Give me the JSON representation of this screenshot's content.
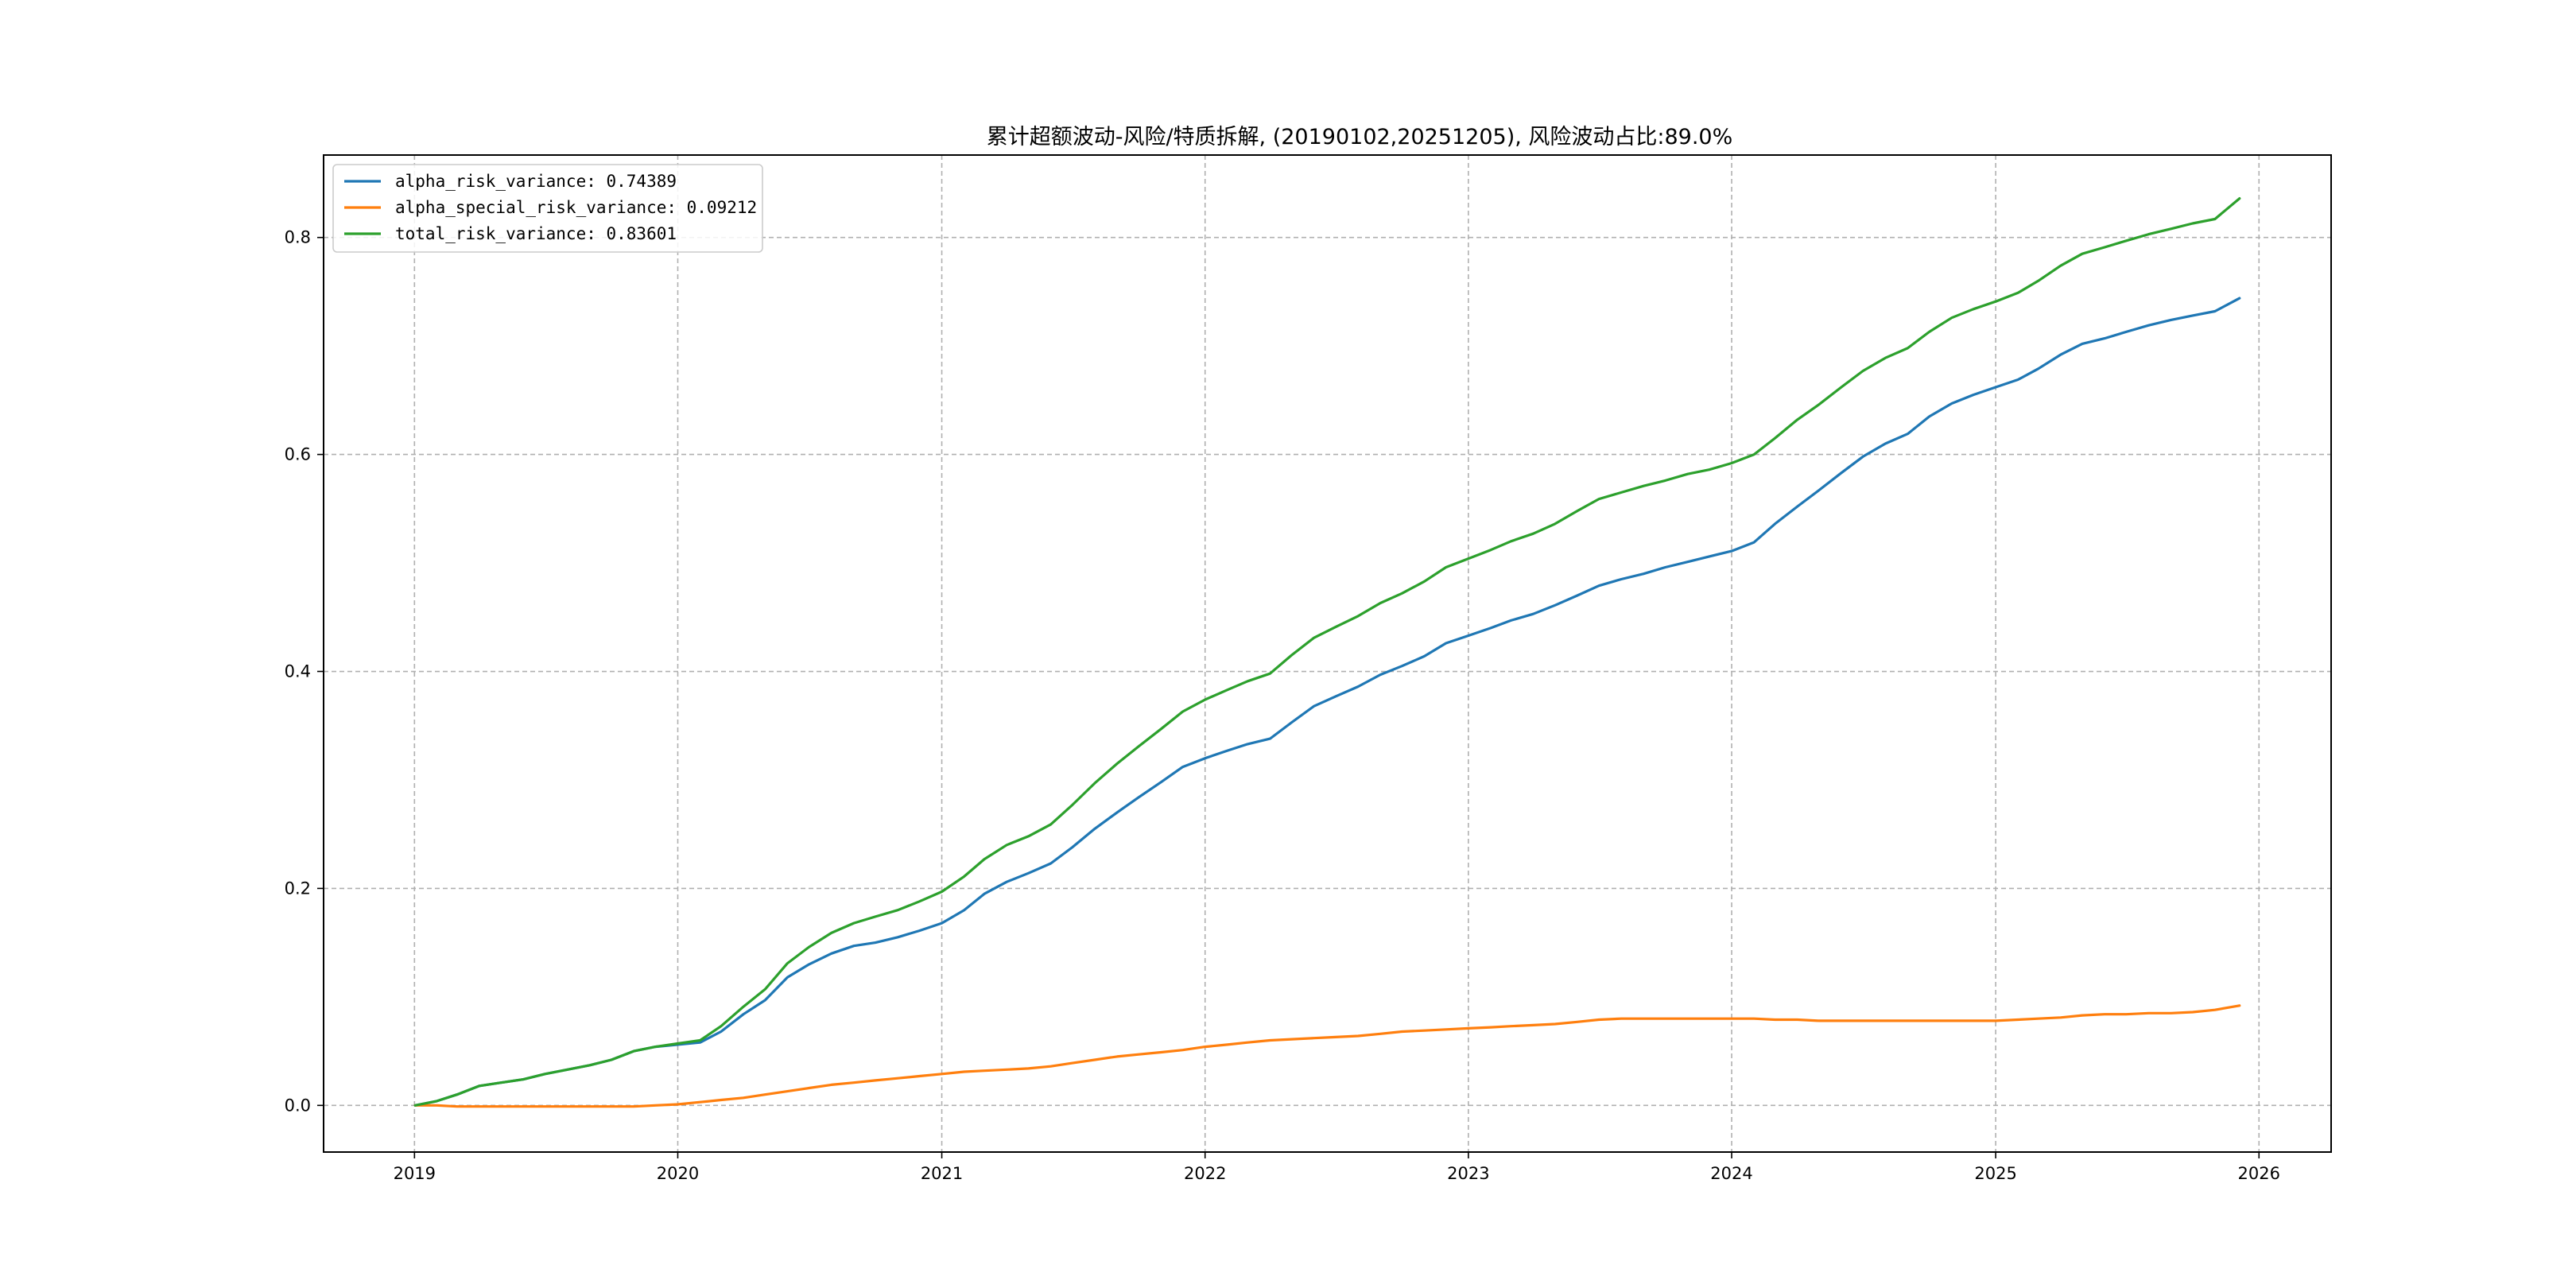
{
  "chart_data": {
    "type": "line",
    "title": "累计超额波动-风险/特质拆解, (20190102,20251205), 风险波动占比:89.0%",
    "xlabel": "",
    "ylabel": "",
    "xlim": [
      "2018-08-28",
      "2026-04-11"
    ],
    "ylim": [
      -0.043,
      0.876
    ],
    "x_ticks": [
      "2019",
      "2020",
      "2021",
      "2022",
      "2023",
      "2024",
      "2025",
      "2026"
    ],
    "x_tick_dates": [
      "2019-01-01",
      "2020-01-01",
      "2021-01-01",
      "2022-01-01",
      "2023-01-01",
      "2024-01-01",
      "2025-01-01",
      "2026-01-01"
    ],
    "y_ticks": [
      0.0,
      0.2,
      0.4,
      0.6,
      0.8
    ],
    "y_tick_labels": [
      "0.0",
      "0.2",
      "0.4",
      "0.6",
      "0.8"
    ],
    "grid": true,
    "legend_position": "top-left",
    "x": [
      "2019-01-02",
      "2019-02-01",
      "2019-03-01",
      "2019-04-01",
      "2019-05-01",
      "2019-06-01",
      "2019-07-01",
      "2019-08-01",
      "2019-09-01",
      "2019-10-01",
      "2019-11-01",
      "2019-12-01",
      "2020-01-01",
      "2020-02-01",
      "2020-03-01",
      "2020-04-01",
      "2020-05-01",
      "2020-06-01",
      "2020-07-01",
      "2020-08-01",
      "2020-09-01",
      "2020-10-01",
      "2020-11-01",
      "2020-12-01",
      "2021-01-01",
      "2021-02-01",
      "2021-03-01",
      "2021-04-01",
      "2021-05-01",
      "2021-06-01",
      "2021-07-01",
      "2021-08-01",
      "2021-09-01",
      "2021-10-01",
      "2021-11-01",
      "2021-12-01",
      "2022-01-01",
      "2022-02-01",
      "2022-03-01",
      "2022-04-01",
      "2022-05-01",
      "2022-06-01",
      "2022-07-01",
      "2022-08-01",
      "2022-09-01",
      "2022-10-01",
      "2022-11-01",
      "2022-12-01",
      "2023-01-01",
      "2023-02-01",
      "2023-03-01",
      "2023-04-01",
      "2023-05-01",
      "2023-06-01",
      "2023-07-01",
      "2023-08-01",
      "2023-09-01",
      "2023-10-01",
      "2023-11-01",
      "2023-12-01",
      "2024-01-01",
      "2024-02-01",
      "2024-03-01",
      "2024-04-01",
      "2024-05-01",
      "2024-06-01",
      "2024-07-01",
      "2024-08-01",
      "2024-09-01",
      "2024-10-01",
      "2024-11-01",
      "2024-12-01",
      "2025-01-01",
      "2025-02-01",
      "2025-03-01",
      "2025-04-01",
      "2025-05-01",
      "2025-06-01",
      "2025-07-01",
      "2025-08-01",
      "2025-09-01",
      "2025-10-01",
      "2025-11-01",
      "2025-12-05"
    ],
    "series": [
      {
        "name": "alpha_risk_variance: 0.74389",
        "color": "#1f77b4",
        "values": [
          0.0,
          0.004,
          0.01,
          0.018,
          0.021,
          0.024,
          0.029,
          0.033,
          0.037,
          0.042,
          0.05,
          0.054,
          0.056,
          0.058,
          0.068,
          0.084,
          0.097,
          0.118,
          0.13,
          0.14,
          0.147,
          0.15,
          0.155,
          0.161,
          0.168,
          0.18,
          0.195,
          0.206,
          0.214,
          0.223,
          0.238,
          0.255,
          0.27,
          0.284,
          0.298,
          0.312,
          0.32,
          0.327,
          0.333,
          0.338,
          0.353,
          0.368,
          0.377,
          0.386,
          0.397,
          0.405,
          0.414,
          0.426,
          0.433,
          0.44,
          0.447,
          0.453,
          0.461,
          0.47,
          0.479,
          0.485,
          0.49,
          0.496,
          0.501,
          0.506,
          0.511,
          0.519,
          0.536,
          0.552,
          0.567,
          0.583,
          0.598,
          0.61,
          0.619,
          0.635,
          0.647,
          0.655,
          0.662,
          0.669,
          0.679,
          0.692,
          0.702,
          0.707,
          0.713,
          0.719,
          0.724,
          0.728,
          0.732,
          0.744
        ]
      },
      {
        "name": "alpha_special_risk_variance: 0.09212",
        "color": "#ff7f0e",
        "values": [
          0.0,
          0.0,
          -0.001,
          -0.001,
          -0.001,
          -0.001,
          -0.001,
          -0.001,
          -0.001,
          -0.001,
          -0.001,
          0.0,
          0.001,
          0.003,
          0.005,
          0.007,
          0.01,
          0.013,
          0.016,
          0.019,
          0.021,
          0.023,
          0.025,
          0.027,
          0.029,
          0.031,
          0.032,
          0.033,
          0.034,
          0.036,
          0.039,
          0.042,
          0.045,
          0.047,
          0.049,
          0.051,
          0.054,
          0.056,
          0.058,
          0.06,
          0.061,
          0.062,
          0.063,
          0.064,
          0.066,
          0.068,
          0.069,
          0.07,
          0.071,
          0.072,
          0.073,
          0.074,
          0.075,
          0.077,
          0.079,
          0.08,
          0.08,
          0.08,
          0.08,
          0.08,
          0.08,
          0.08,
          0.079,
          0.079,
          0.078,
          0.078,
          0.078,
          0.078,
          0.078,
          0.078,
          0.078,
          0.078,
          0.078,
          0.079,
          0.08,
          0.081,
          0.083,
          0.084,
          0.084,
          0.085,
          0.085,
          0.086,
          0.088,
          0.092
        ]
      },
      {
        "name": "total_risk_variance: 0.83601",
        "color": "#2ca02c",
        "values": [
          0.0,
          0.004,
          0.01,
          0.018,
          0.021,
          0.024,
          0.029,
          0.033,
          0.037,
          0.042,
          0.05,
          0.054,
          0.057,
          0.06,
          0.073,
          0.091,
          0.107,
          0.131,
          0.146,
          0.159,
          0.168,
          0.174,
          0.18,
          0.188,
          0.197,
          0.211,
          0.227,
          0.24,
          0.248,
          0.259,
          0.277,
          0.297,
          0.315,
          0.331,
          0.347,
          0.363,
          0.374,
          0.383,
          0.391,
          0.398,
          0.415,
          0.431,
          0.441,
          0.451,
          0.463,
          0.472,
          0.483,
          0.496,
          0.504,
          0.512,
          0.52,
          0.527,
          0.536,
          0.548,
          0.559,
          0.565,
          0.571,
          0.576,
          0.582,
          0.586,
          0.592,
          0.6,
          0.615,
          0.632,
          0.646,
          0.662,
          0.677,
          0.689,
          0.698,
          0.713,
          0.726,
          0.734,
          0.741,
          0.749,
          0.76,
          0.774,
          0.785,
          0.791,
          0.797,
          0.803,
          0.808,
          0.813,
          0.817,
          0.836
        ]
      }
    ]
  }
}
